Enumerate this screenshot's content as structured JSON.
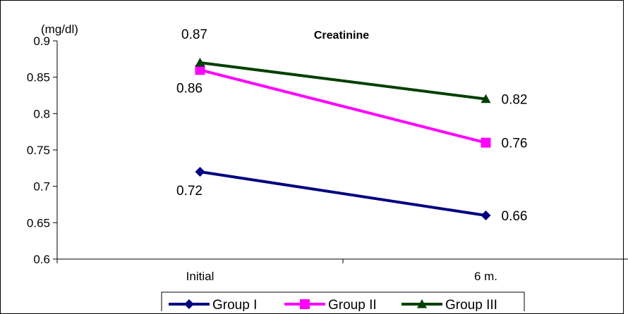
{
  "chart_data": {
    "type": "line",
    "title": "Creatinine",
    "ylabel": "(mg/dl)",
    "xlabel": "",
    "categories": [
      "Initial",
      "6 m."
    ],
    "ylim": [
      0.6,
      0.9
    ],
    "yticks": [
      0.6,
      0.65,
      0.7,
      0.75,
      0.8,
      0.85,
      0.9
    ],
    "ytick_labels": [
      "0.6",
      "0.65",
      "0.7",
      "0.75",
      "0.8",
      "0.85",
      "0.9"
    ],
    "grid": false,
    "legend_position": "bottom",
    "series": [
      {
        "name": "Group I",
        "values": [
          0.72,
          0.66
        ],
        "labels": [
          "0.72",
          "0.66"
        ],
        "color": "#000080",
        "marker": "diamond"
      },
      {
        "name": "Group II",
        "values": [
          0.86,
          0.76
        ],
        "labels": [
          "0.86",
          "0.76"
        ],
        "color": "#ff00ff",
        "marker": "square"
      },
      {
        "name": "Group III",
        "values": [
          0.87,
          0.82
        ],
        "labels": [
          "0.87",
          "0.82"
        ],
        "color": "#004000",
        "marker": "triangle"
      }
    ]
  }
}
